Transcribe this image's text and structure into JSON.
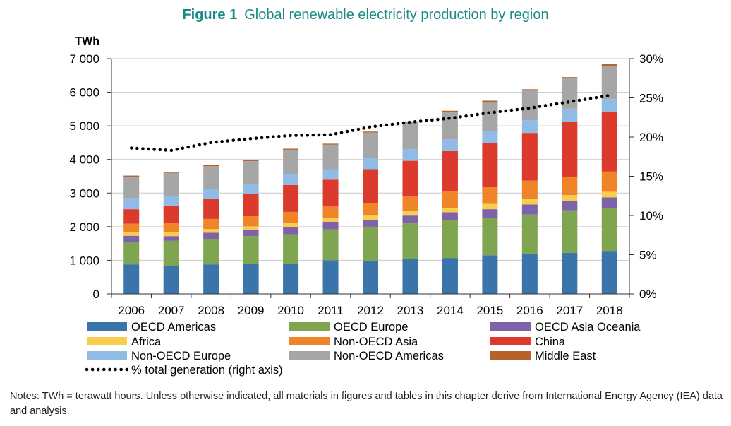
{
  "title": {
    "figure_label": "Figure 1",
    "text": "Global renewable electricity production by region"
  },
  "chart_data": {
    "type": "bar",
    "stacked": true,
    "title": "Global renewable electricity production by region",
    "ylabel": "TWh",
    "y2label": "% total generation (right axis)",
    "ylim": [
      0,
      7000
    ],
    "y2lim": [
      0,
      30
    ],
    "yticks": [
      0,
      1000,
      2000,
      3000,
      4000,
      5000,
      6000,
      7000
    ],
    "ytick_labels": [
      "0",
      "1 000",
      "2 000",
      "3 000",
      "4 000",
      "5 000",
      "6 000",
      "7 000"
    ],
    "y2ticks": [
      0,
      5,
      10,
      15,
      20,
      25,
      30
    ],
    "y2tick_labels": [
      "0%",
      "5%",
      "10%",
      "15%",
      "20%",
      "25%",
      "30%"
    ],
    "grid": true,
    "categories": [
      "2006",
      "2007",
      "2008",
      "2009",
      "2010",
      "2011",
      "2012",
      "2013",
      "2014",
      "2015",
      "2016",
      "2017",
      "2018"
    ],
    "series": [
      {
        "name": "OECD Americas",
        "color": "#3a74aa",
        "values": [
          880,
          840,
          880,
          900,
          900,
          1000,
          990,
          1040,
          1070,
          1150,
          1180,
          1220,
          1280
        ]
      },
      {
        "name": "OECD Europe",
        "color": "#7fa551",
        "values": [
          660,
          740,
          760,
          820,
          870,
          920,
          1010,
          1060,
          1130,
          1120,
          1180,
          1270,
          1270
        ]
      },
      {
        "name": "OECD Asia Oceania",
        "color": "#8062a8",
        "values": [
          190,
          140,
          180,
          180,
          220,
          230,
          200,
          230,
          230,
          250,
          300,
          280,
          320
        ]
      },
      {
        "name": "Africa",
        "color": "#f8cc4f",
        "values": [
          100,
          110,
          110,
          110,
          120,
          120,
          130,
          130,
          130,
          160,
          160,
          170,
          170
        ]
      },
      {
        "name": "Non-OECD Asia",
        "color": "#ef8528",
        "values": [
          260,
          290,
          300,
          300,
          330,
          330,
          380,
          460,
          500,
          500,
          550,
          550,
          600
        ]
      },
      {
        "name": "China",
        "color": "#dd3a2e",
        "values": [
          430,
          510,
          610,
          670,
          800,
          800,
          1000,
          1040,
          1190,
          1300,
          1420,
          1640,
          1780
        ]
      },
      {
        "name": "Non-OECD Europe",
        "color": "#8fbbe4",
        "values": [
          330,
          290,
          280,
          300,
          330,
          310,
          330,
          350,
          350,
          360,
          380,
          380,
          380
        ]
      },
      {
        "name": "Non-OECD Americas",
        "color": "#a6a6a6",
        "values": [
          640,
          680,
          680,
          670,
          720,
          730,
          760,
          790,
          810,
          870,
          880,
          900,
          990
        ]
      },
      {
        "name": "Middle East",
        "color": "#b8622a",
        "values": [
          30,
          30,
          30,
          30,
          30,
          30,
          30,
          30,
          40,
          40,
          40,
          40,
          50
        ]
      }
    ],
    "line": {
      "name": "% total generation  (right axis)",
      "axis": "right",
      "style": "dotted",
      "color": "#000000",
      "values": [
        18.6,
        18.3,
        19.3,
        19.8,
        20.2,
        20.3,
        21.3,
        21.9,
        22.4,
        23.1,
        23.7,
        24.5,
        25.3
      ]
    },
    "legend": {
      "placement": "bottom",
      "items": [
        {
          "label": "OECD Americas",
          "color": "#3a74aa",
          "kind": "bar"
        },
        {
          "label": "OECD Europe",
          "color": "#7fa551",
          "kind": "bar"
        },
        {
          "label": "OECD Asia Oceania",
          "color": "#8062a8",
          "kind": "bar"
        },
        {
          "label": "Africa",
          "color": "#f8cc4f",
          "kind": "bar"
        },
        {
          "label": "Non-OECD Asia",
          "color": "#ef8528",
          "kind": "bar"
        },
        {
          "label": "China",
          "color": "#dd3a2e",
          "kind": "bar"
        },
        {
          "label": "Non-OECD Europe",
          "color": "#8fbbe4",
          "kind": "bar"
        },
        {
          "label": "Non-OECD Americas",
          "color": "#a6a6a6",
          "kind": "bar"
        },
        {
          "label": "Middle East",
          "color": "#b8622a",
          "kind": "bar"
        },
        {
          "label": "% total generation  (right axis)",
          "color": "#000000",
          "kind": "line"
        }
      ]
    }
  },
  "notes": "Notes: TWh = terawatt hours. Unless otherwise indicated, all materials in figures and tables in this chapter derive from International Energy Agency (IEA) data and analysis."
}
